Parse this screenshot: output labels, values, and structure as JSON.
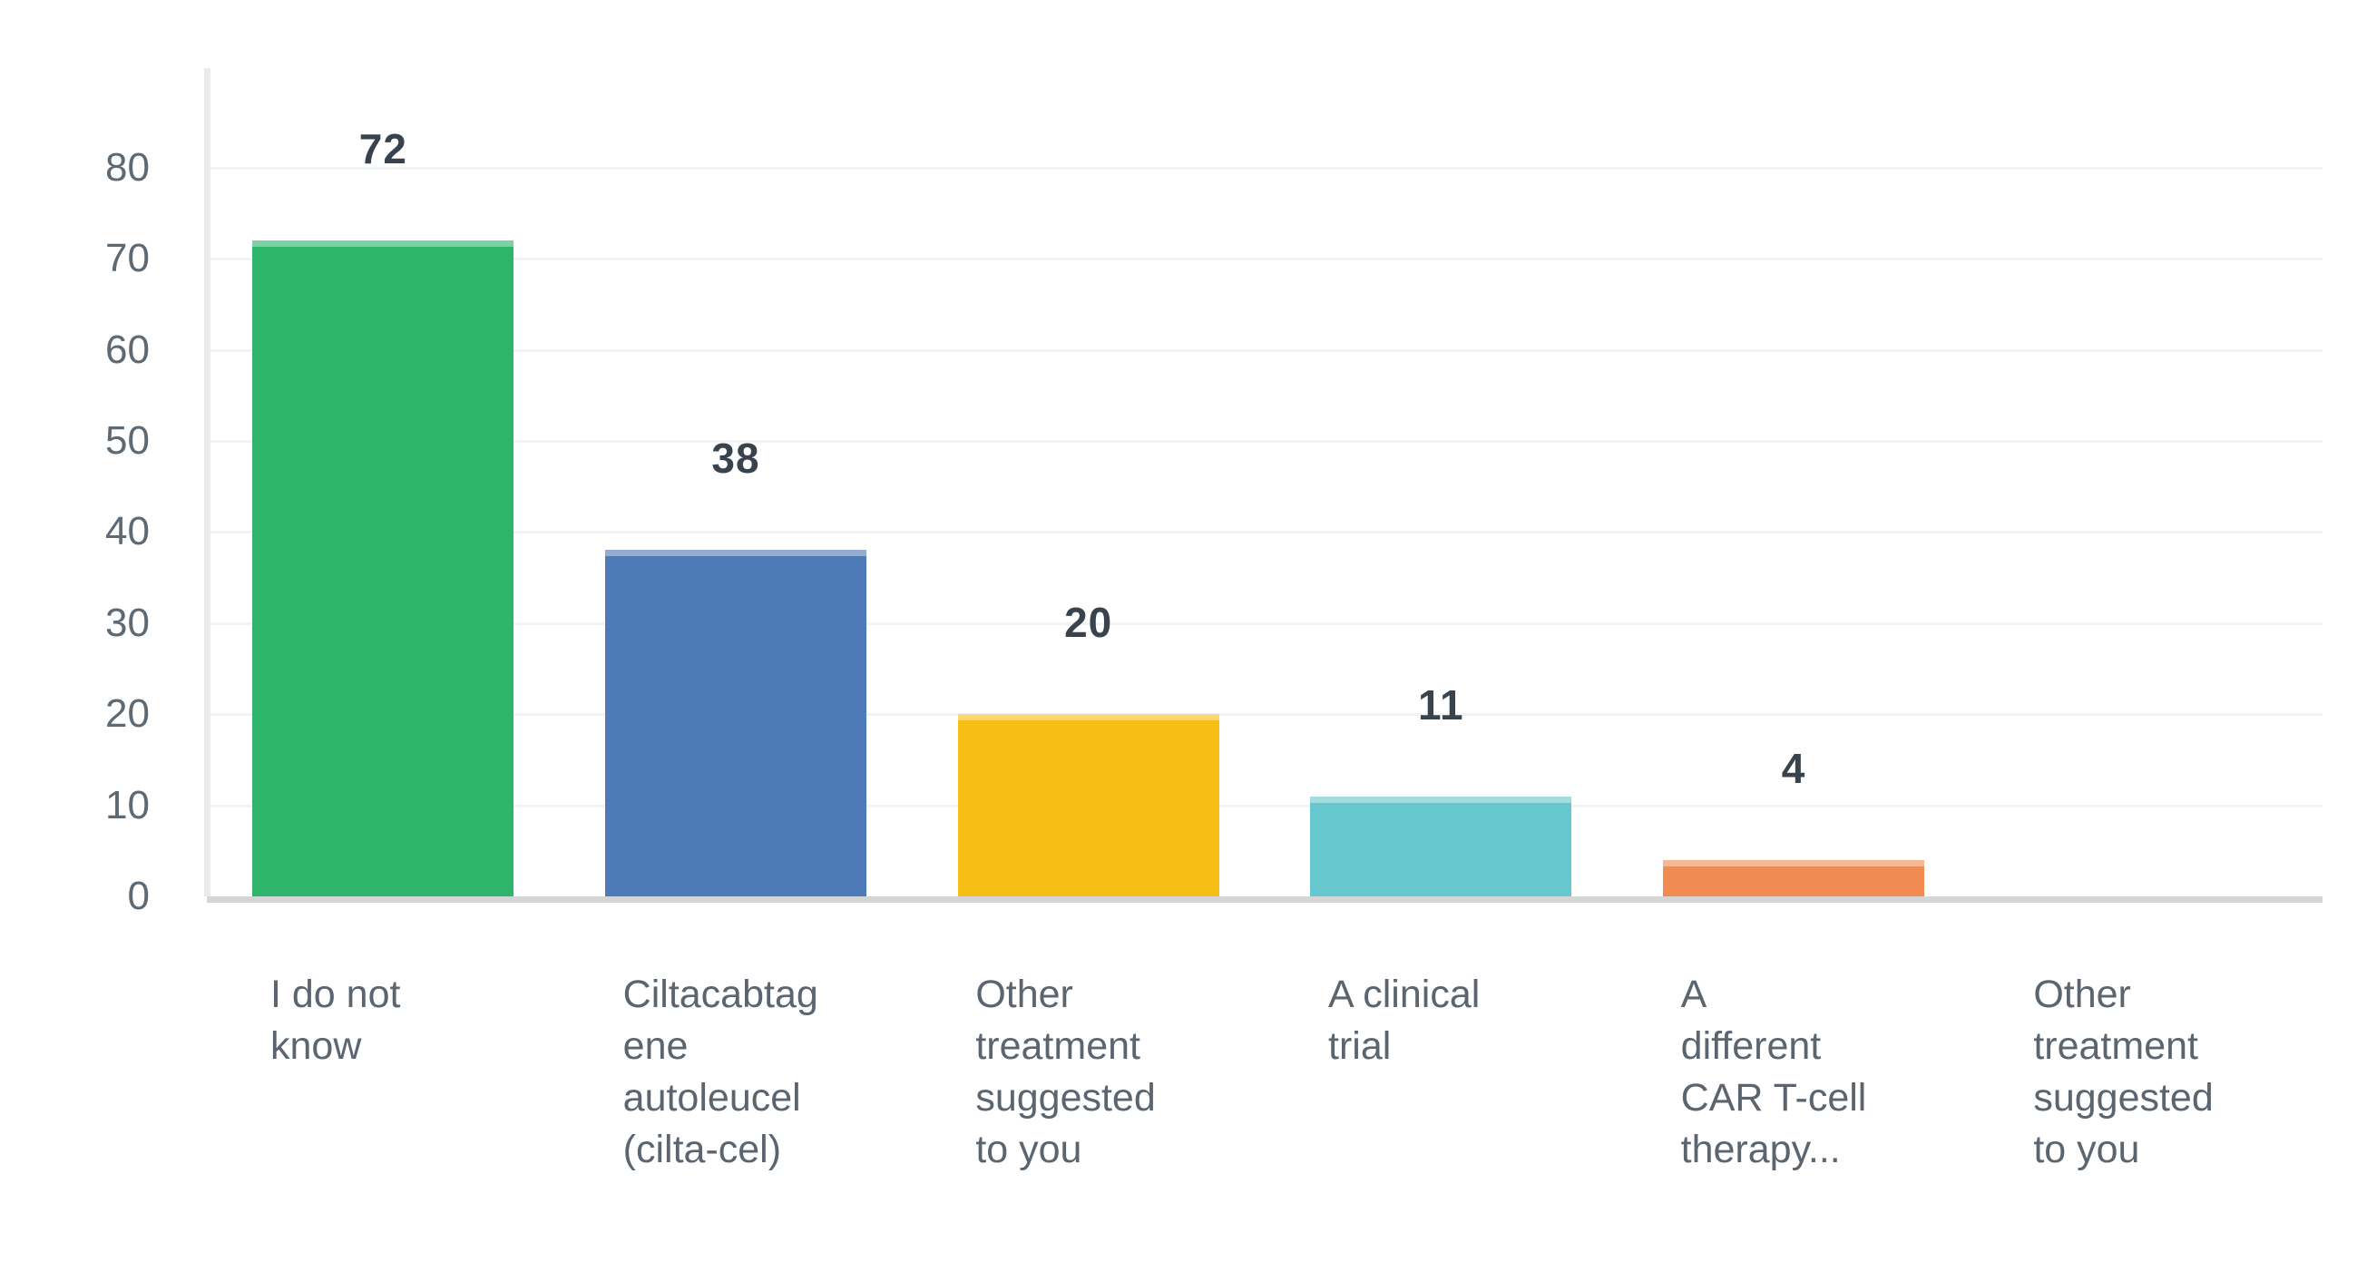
{
  "chart_data": {
    "type": "bar",
    "title": "",
    "xlabel": "",
    "ylabel": "",
    "legend": "none",
    "grid": "horizontal-light",
    "ylim": [
      0,
      90
    ],
    "y_ticks": [
      80,
      70,
      60,
      50,
      40,
      30,
      20,
      10,
      0
    ],
    "categories": [
      "I do not know",
      "Ciltacabtagene autoleucel (cilta-cel)",
      "Other treatment suggested to you",
      "A clinical trial",
      "A different CAR T-cell therapy...",
      "Other treatment suggested to you"
    ],
    "category_display_lines": [
      [
        "I do not",
        "know"
      ],
      [
        "Ciltacabtag",
        "ene",
        "autoleucel",
        "(cilta-cel)"
      ],
      [
        "Other",
        "treatment",
        "suggested",
        "to you"
      ],
      [
        "A clinical",
        "trial"
      ],
      [
        "A",
        "different",
        "CAR T-cell",
        "therapy..."
      ],
      [
        "Other",
        "treatment",
        "suggested",
        "to you"
      ]
    ],
    "values": [
      72,
      38,
      20,
      11,
      4,
      0
    ],
    "value_labels": [
      "72",
      "38",
      "20",
      "11",
      "4",
      ""
    ],
    "bar_colors": [
      "#2FB46C",
      "#4E7BB8",
      "#F7BE16",
      "#67C7CE",
      "#F28B52",
      null
    ]
  },
  "style_colors": {
    "background": "#FFFFFF",
    "gridline": "#F2F4F4",
    "baseline": "#D4D5D5",
    "y_axis_line": "#EAEBEB",
    "tick_label": "#5D6973",
    "value_label": "#39434E",
    "category_label": "#5A6570"
  }
}
